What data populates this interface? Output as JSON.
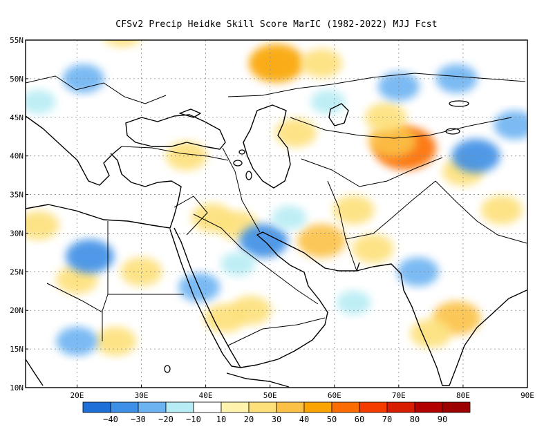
{
  "title": "CFSv2 Precip Heidke Skill Score MarIC (1982-2022) MJJ Fcst",
  "lat_ticks": [
    "55N",
    "50N",
    "45N",
    "40N",
    "35N",
    "30N",
    "25N",
    "20N",
    "15N",
    "10N"
  ],
  "lon_ticks": [
    "20E",
    "30E",
    "40E",
    "50E",
    "60E",
    "70E",
    "80E",
    "90E"
  ],
  "colorbar": {
    "labels": [
      "−40",
      "−30",
      "−20",
      "−10",
      "10",
      "20",
      "30",
      "40",
      "50",
      "60",
      "70",
      "80",
      "90"
    ],
    "colors": [
      "#1f6fd9",
      "#3e8fe6",
      "#6db3f2",
      "#b7ecf4",
      "#ffffff",
      "#fff3ad",
      "#fde07a",
      "#fbc146",
      "#f9a400",
      "#fb6d00",
      "#f53c00",
      "#d81c00",
      "#b20000",
      "#9c0000"
    ]
  },
  "chart_data": {
    "type": "heatmap",
    "title": "CFSv2 Precip Heidke Skill Score MarIC (1982-2022) MJJ Fcst",
    "xlabel": "",
    "ylabel": "",
    "xlim": [
      12,
      90
    ],
    "ylim": [
      10,
      55
    ],
    "grid": true,
    "colorbar_levels": [
      -40,
      -30,
      -20,
      -10,
      10,
      20,
      30,
      40,
      50,
      60,
      70,
      80,
      90
    ],
    "regions": [
      {
        "lon": 51,
        "lat": 52,
        "value": 40
      },
      {
        "lon": 71,
        "lat": 41,
        "value": 50
      },
      {
        "lon": 69,
        "lat": 42,
        "value": 30
      },
      {
        "lon": 58,
        "lat": 52,
        "value": 20
      },
      {
        "lon": 37,
        "lat": 40,
        "value": 20
      },
      {
        "lon": 54,
        "lat": 43,
        "value": 20
      },
      {
        "lon": 68,
        "lat": 45,
        "value": 20
      },
      {
        "lon": 80,
        "lat": 38,
        "value": 20
      },
      {
        "lon": 66,
        "lat": 28,
        "value": 20
      },
      {
        "lon": 58,
        "lat": 29,
        "value": 30
      },
      {
        "lon": 45,
        "lat": 31,
        "value": 20
      },
      {
        "lon": 41,
        "lat": 32,
        "value": 20
      },
      {
        "lon": 43,
        "lat": 19,
        "value": 20
      },
      {
        "lon": 47,
        "lat": 20,
        "value": 20
      },
      {
        "lon": 79,
        "lat": 19,
        "value": 30
      },
      {
        "lon": 75,
        "lat": 17,
        "value": 20
      },
      {
        "lon": 20,
        "lat": 24,
        "value": 20
      },
      {
        "lon": 26,
        "lat": 16,
        "value": 20
      },
      {
        "lon": 30,
        "lat": 25,
        "value": 20
      },
      {
        "lon": 14,
        "lat": 31,
        "value": 20
      },
      {
        "lon": 27,
        "lat": 56,
        "value": 20
      },
      {
        "lon": 86,
        "lat": 33,
        "value": 20
      },
      {
        "lon": 63,
        "lat": 33,
        "value": 20
      },
      {
        "lon": 21,
        "lat": 50,
        "value": -20
      },
      {
        "lon": 59,
        "lat": 47,
        "value": -10
      },
      {
        "lon": 70,
        "lat": 49,
        "value": -20
      },
      {
        "lon": 79,
        "lat": 50,
        "value": -20
      },
      {
        "lon": 82,
        "lat": 40,
        "value": -30
      },
      {
        "lon": 49,
        "lat": 29,
        "value": -30
      },
      {
        "lon": 53,
        "lat": 32,
        "value": -10
      },
      {
        "lon": 22,
        "lat": 27,
        "value": -30
      },
      {
        "lon": 20,
        "lat": 16,
        "value": -20
      },
      {
        "lon": 39,
        "lat": 23,
        "value": -20
      },
      {
        "lon": 73,
        "lat": 25,
        "value": -20
      },
      {
        "lon": 88,
        "lat": 44,
        "value": -20
      },
      {
        "lon": 14,
        "lat": 47,
        "value": -10
      },
      {
        "lon": 45,
        "lat": 26,
        "value": -10
      },
      {
        "lon": 63,
        "lat": 21,
        "value": -10
      }
    ]
  }
}
